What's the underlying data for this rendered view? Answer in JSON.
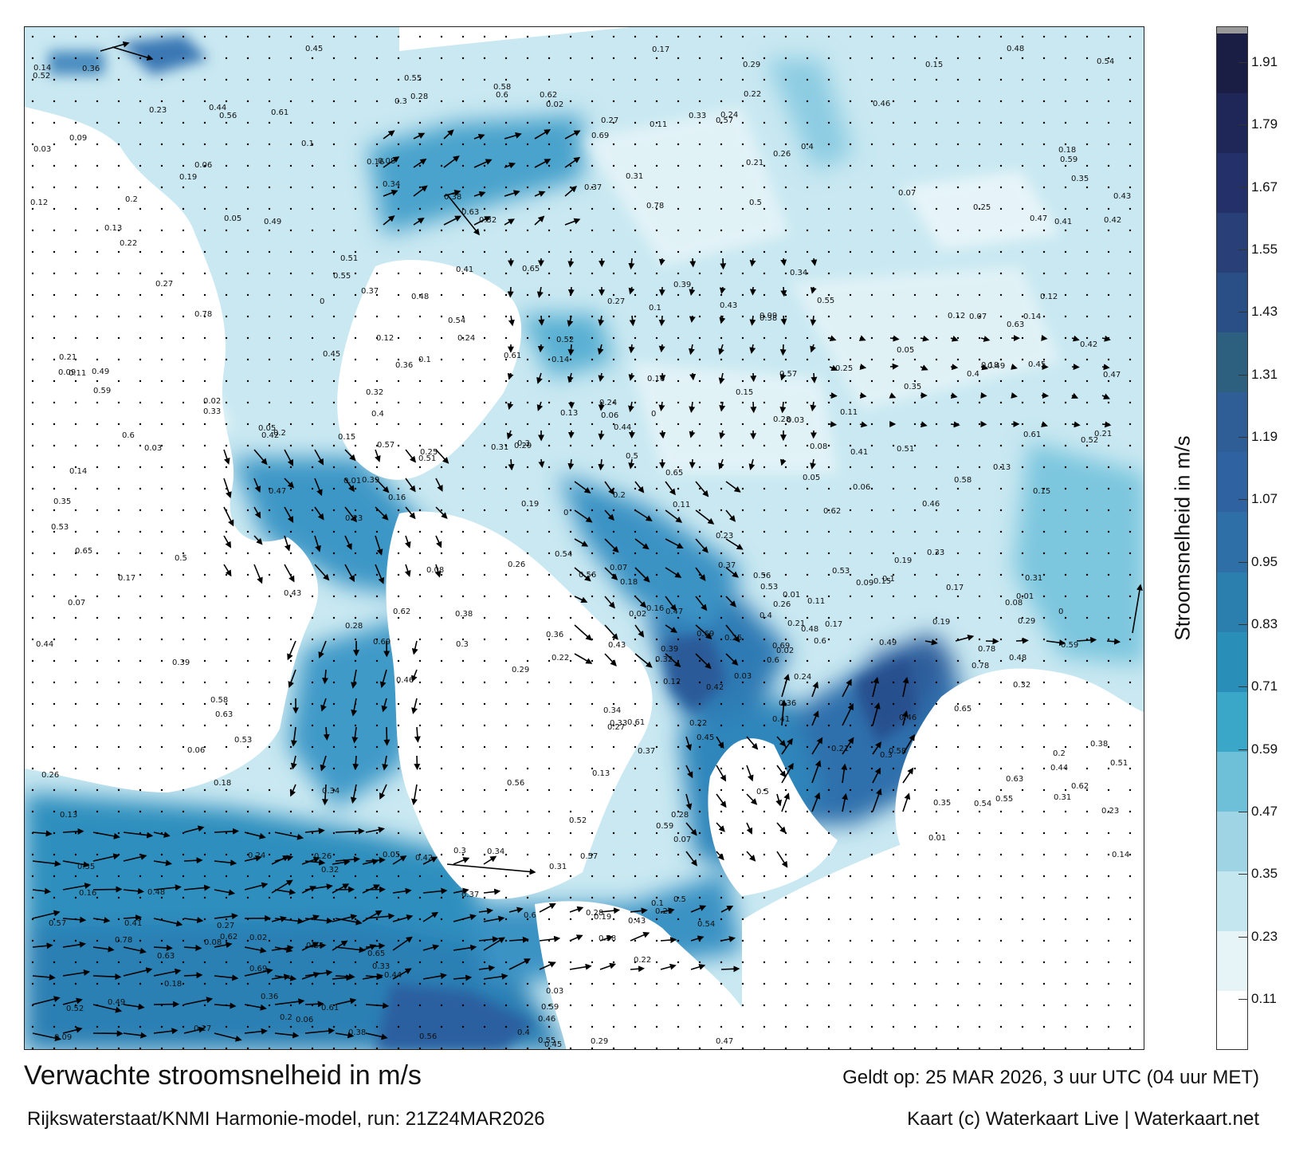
{
  "title": "Verwachte stroomsnelheid in m/s",
  "credit": "Rijkswaterstaat/KNMI Harmonie-model, run: 21Z24MAR2026",
  "valid": "Geldt op: 25 MAR 2026, 3 uur UTC (04 uur MET)",
  "copyright": "Kaart (c) Waterkaart Live | Waterkaart.net",
  "colorbar": {
    "label": "Stroomsnelheid in m/s",
    "ticks": [
      "0.11",
      "0.23",
      "0.35",
      "0.47",
      "0.59",
      "0.71",
      "0.83",
      "0.95",
      "1.07",
      "1.19",
      "1.31",
      "1.43",
      "1.55",
      "1.67",
      "1.79",
      "1.91"
    ],
    "colors": [
      "#ffffff",
      "#e6f4f8",
      "#c4e6ef",
      "#9fd4e4",
      "#6ec0d8",
      "#3aa6c8",
      "#2a8fb8",
      "#2a7fae",
      "#2d6fa6",
      "#2f62a0",
      "#2f5e96",
      "#2d5f7e",
      "#2a4f86",
      "#283f78",
      "#24306a",
      "#1f2758",
      "#1a1d44"
    ],
    "top_color": "#9a9a9a"
  },
  "map_labels": [
    "0.15",
    "0.14",
    "0.13",
    "0.12",
    "0.21",
    "0.11",
    "0.1",
    "0.09",
    "0.08",
    "0.07",
    "0.06",
    "0.05",
    "0.03",
    "0.02",
    "0.17",
    "0.16",
    "0.25",
    "0.19",
    "0.18",
    "0.2",
    "0.24",
    "0.37",
    "0.35",
    "0.28",
    "0.29",
    "0.5",
    "0.47",
    "0.31",
    "0.26",
    "0.32",
    "0.27",
    "0.36",
    "0.33",
    "0.34",
    "0.3",
    "0.23",
    "0.22",
    "0.38",
    "0.4",
    "0.41",
    "0.42",
    "0.43",
    "0.44",
    "0.45",
    "0.46",
    "0.48",
    "0.49",
    "0.52",
    "0.54",
    "0.55",
    "0.56",
    "0.57",
    "0.58",
    "0.59",
    "0.6",
    "0.61",
    "0.62",
    "0.63",
    "0.69",
    "0.78",
    "0.65",
    "0.53",
    "0.51",
    "0.39",
    "0.01",
    "0"
  ]
}
